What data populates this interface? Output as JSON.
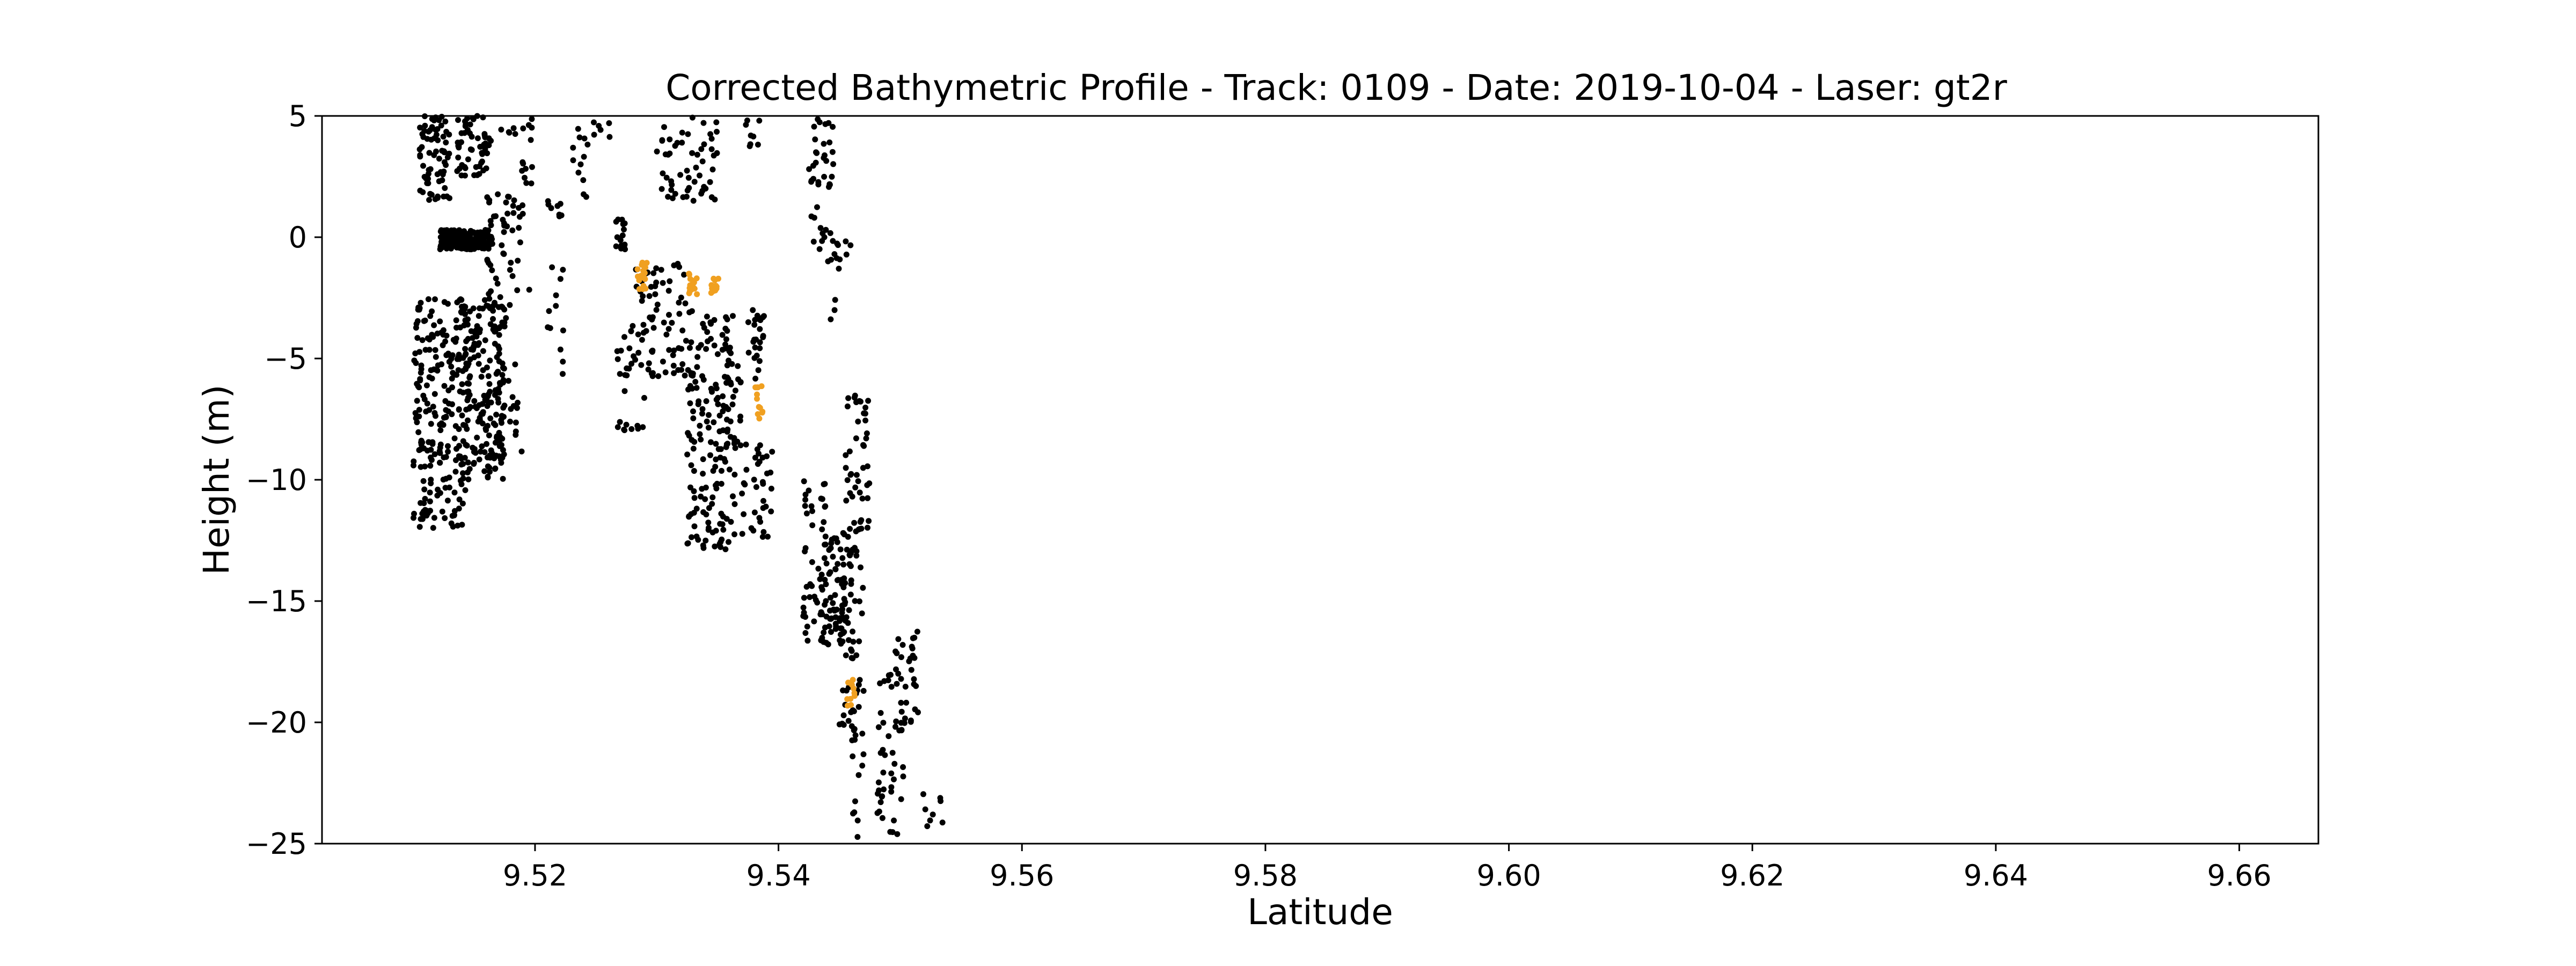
{
  "chart_data": {
    "type": "scatter",
    "title": "Corrected Bathymetric Profile - Track: 0109 - Date: 2019-10-04 - Laser: gt2r",
    "xlabel": "Latitude",
    "ylabel": "Height (m)",
    "xlim": [
      9.5025,
      9.6665
    ],
    "ylim": [
      -25,
      5
    ],
    "xticks": [
      9.52,
      9.54,
      9.56,
      9.58,
      9.6,
      9.62,
      9.64,
      9.66
    ],
    "xtick_labels": [
      "9.52",
      "9.54",
      "9.56",
      "9.58",
      "9.60",
      "9.62",
      "9.64",
      "9.66"
    ],
    "yticks": [
      5,
      0,
      -5,
      -10,
      -15,
      -20,
      -25
    ],
    "ytick_labels": [
      "5",
      "0",
      "−5",
      "−10",
      "−15",
      "−20",
      "−25"
    ],
    "grid": false,
    "legend": "none",
    "colors": {
      "raw": "#000000",
      "highlight": "#f0a020"
    },
    "series": [
      {
        "color": "#000000",
        "clusters": [
          {
            "x": [
              9.5105,
              9.513
            ],
            "y": [
              1.5,
              5
            ],
            "n": 70
          },
          {
            "x": [
              9.5135,
              9.5165
            ],
            "y": [
              2.5,
              5
            ],
            "n": 55
          },
          {
            "x": [
              9.5165,
              9.52
            ],
            "y": [
              4.2,
              5
            ],
            "n": 8
          },
          {
            "x": [
              9.5122,
              9.5165
            ],
            "y": [
              -0.5,
              0.3
            ],
            "n": 220
          },
          {
            "x": [
              9.516,
              9.519
            ],
            "y": [
              0.2,
              1.8
            ],
            "n": 25
          },
          {
            "x": [
              9.516,
              9.5185
            ],
            "y": [
              -4,
              -0.2
            ],
            "n": 25
          },
          {
            "x": [
              9.51,
              9.5145
            ],
            "y": [
              -12,
              -2.5
            ],
            "n": 230
          },
          {
            "x": [
              9.514,
              9.5175
            ],
            "y": [
              -10,
              -2.5
            ],
            "n": 160
          },
          {
            "x": [
              9.516,
              9.5175
            ],
            "y": [
              -10,
              -6
            ],
            "n": 30
          },
          {
            "x": [
              9.5178,
              9.519
            ],
            "y": [
              -9,
              -5
            ],
            "n": 12
          },
          {
            "x": [
              9.5185,
              9.52
            ],
            "y": [
              -3,
              4.8
            ],
            "n": 15
          },
          {
            "x": [
              9.521,
              9.5225
            ],
            "y": [
              0.8,
              1.5
            ],
            "n": 8
          },
          {
            "x": [
              9.5208,
              9.5225
            ],
            "y": [
              -6,
              -1
            ],
            "n": 12
          },
          {
            "x": [
              9.523,
              9.5245
            ],
            "y": [
              1.5,
              5
            ],
            "n": 12
          },
          {
            "x": [
              9.5248,
              9.5265
            ],
            "y": [
              4,
              5
            ],
            "n": 6
          },
          {
            "x": [
              9.5265,
              9.5275
            ],
            "y": [
              -0.5,
              0.8
            ],
            "n": 15
          },
          {
            "x": [
              9.5265,
              9.529
            ],
            "y": [
              -8,
              -3.5
            ],
            "n": 30
          },
          {
            "x": [
              9.528,
              9.53
            ],
            "y": [
              -5,
              -1
            ],
            "n": 20
          },
          {
            "x": [
              9.529,
              9.533
            ],
            "y": [
              -6,
              -1
            ],
            "n": 50
          },
          {
            "x": [
              9.53,
              9.532
            ],
            "y": [
              1.2,
              5
            ],
            "n": 20
          },
          {
            "x": [
              9.532,
              9.535
            ],
            "y": [
              1.5,
              5
            ],
            "n": 35
          },
          {
            "x": [
              9.5325,
              9.5365
            ],
            "y": [
              -13,
              -3
            ],
            "n": 160
          },
          {
            "x": [
              9.5355,
              9.537
            ],
            "y": [
              -9,
              -5
            ],
            "n": 20
          },
          {
            "x": [
              9.537,
              9.5395
            ],
            "y": [
              -12.5,
              -8.5
            ],
            "n": 35
          },
          {
            "x": [
              9.5375,
              9.539
            ],
            "y": [
              -6,
              -3
            ],
            "n": 15
          },
          {
            "x": [
              9.538,
              9.539
            ],
            "y": [
              -3,
              -5
            ],
            "n": 10
          },
          {
            "x": [
              9.537,
              9.5385
            ],
            "y": [
              3.5,
              5
            ],
            "n": 8
          },
          {
            "x": [
              9.5425,
              9.5445
            ],
            "y": [
              -0.5,
              5
            ],
            "n": 40
          },
          {
            "x": [
              9.544,
              9.546
            ],
            "y": [
              -1.5,
              0
            ],
            "n": 12
          },
          {
            "x": [
              9.544,
              9.545
            ],
            "y": [
              -3.5,
              -2.5
            ],
            "n": 3
          },
          {
            "x": [
              9.542,
              9.544
            ],
            "y": [
              -17,
              -10
            ],
            "n": 50
          },
          {
            "x": [
              9.5435,
              9.546
            ],
            "y": [
              -17,
              -12
            ],
            "n": 70
          },
          {
            "x": [
              9.545,
              9.547
            ],
            "y": [
              -21,
              -13
            ],
            "n": 50
          },
          {
            "x": [
              9.5455,
              9.5475
            ],
            "y": [
              -14,
              -6.5
            ],
            "n": 55
          },
          {
            "x": [
              9.546,
              9.547
            ],
            "y": [
              -25,
              -20
            ],
            "n": 10
          },
          {
            "x": [
              9.548,
              9.5505
            ],
            "y": [
              -25,
              -18
            ],
            "n": 45
          },
          {
            "x": [
              9.5495,
              9.5515
            ],
            "y": [
              -20.5,
              -15.5
            ],
            "n": 30
          },
          {
            "x": [
              9.5515,
              9.5535
            ],
            "y": [
              -24.5,
              -22.5
            ],
            "n": 8
          }
        ]
      },
      {
        "color": "#f0a020",
        "clusters": [
          {
            "x": [
              9.5284,
              9.5292
            ],
            "y": [
              -2.2,
              -1.0
            ],
            "n": 18
          },
          {
            "x": [
              9.5325,
              9.5333
            ],
            "y": [
              -2.4,
              -1.5
            ],
            "n": 16
          },
          {
            "x": [
              9.5343,
              9.5352
            ],
            "y": [
              -2.3,
              -1.6
            ],
            "n": 14
          },
          {
            "x": [
              9.5381,
              9.5387
            ],
            "y": [
              -7.6,
              -6.0
            ],
            "n": 12
          },
          {
            "x": [
              9.5456,
              9.5463
            ],
            "y": [
              -19.5,
              -18.0
            ],
            "n": 10
          }
        ]
      }
    ]
  }
}
